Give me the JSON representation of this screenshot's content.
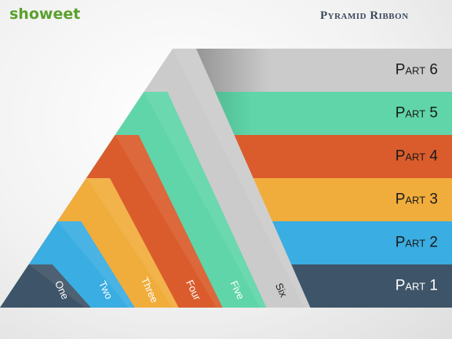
{
  "header": {
    "logo": "showeet",
    "title": "Pyramid Ribbon"
  },
  "parts": [
    {
      "label": "Part 1",
      "strip": "One",
      "color": "#3e5468"
    },
    {
      "label": "Part 2",
      "strip": "Two",
      "color": "#3aade2"
    },
    {
      "label": "Part 3",
      "strip": "Three",
      "color": "#f1ad3c"
    },
    {
      "label": "Part 4",
      "strip": "Four",
      "color": "#da5c2c"
    },
    {
      "label": "Part 5",
      "strip": "Five",
      "color": "#5fd5a9"
    },
    {
      "label": "Part 6",
      "strip": "Six",
      "color": "#cbcbcb"
    }
  ]
}
